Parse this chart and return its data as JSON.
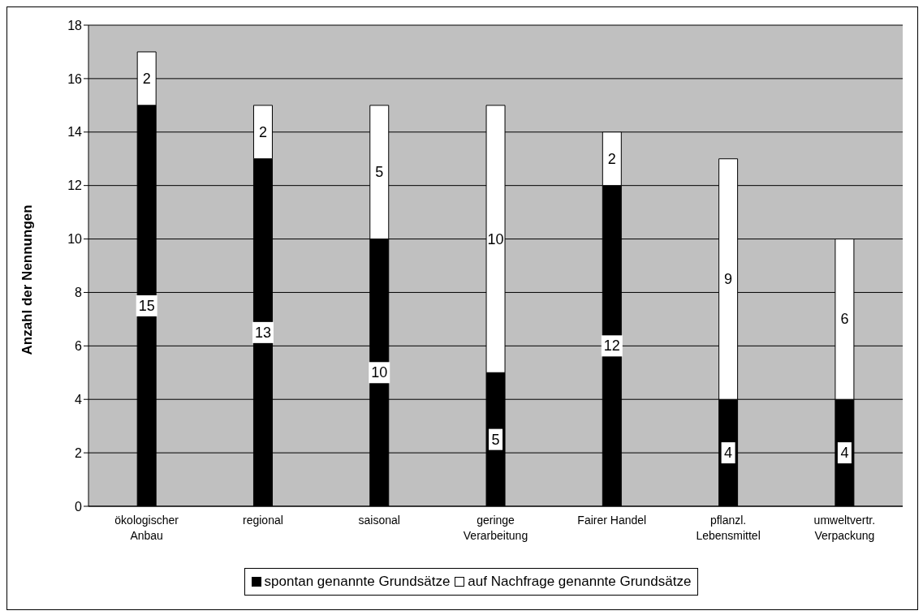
{
  "chart_data": {
    "type": "bar",
    "stacked": true,
    "ylabel": "Anzahl der Nennungen",
    "categories": [
      "ökologischer Anbau",
      "regional",
      "saisonal",
      "geringe Verarbeitung",
      "Fairer Handel",
      "pflanzl. Lebensmittel",
      "umweltvertr. Verpackung"
    ],
    "series": [
      {
        "name": "spontan genannte Grundsätze",
        "color": "#000000",
        "values": [
          15,
          13,
          10,
          5,
          12,
          4,
          4
        ]
      },
      {
        "name": "auf Nachfrage genannte Grundsätze",
        "color": "#ffffff",
        "values": [
          2,
          2,
          5,
          10,
          2,
          9,
          6
        ]
      }
    ],
    "ylim": [
      0,
      18
    ],
    "yticks": [
      0,
      2,
      4,
      6,
      8,
      10,
      12,
      14,
      16,
      18
    ],
    "grid": "y",
    "legend": "bottom",
    "data_labels": true
  }
}
